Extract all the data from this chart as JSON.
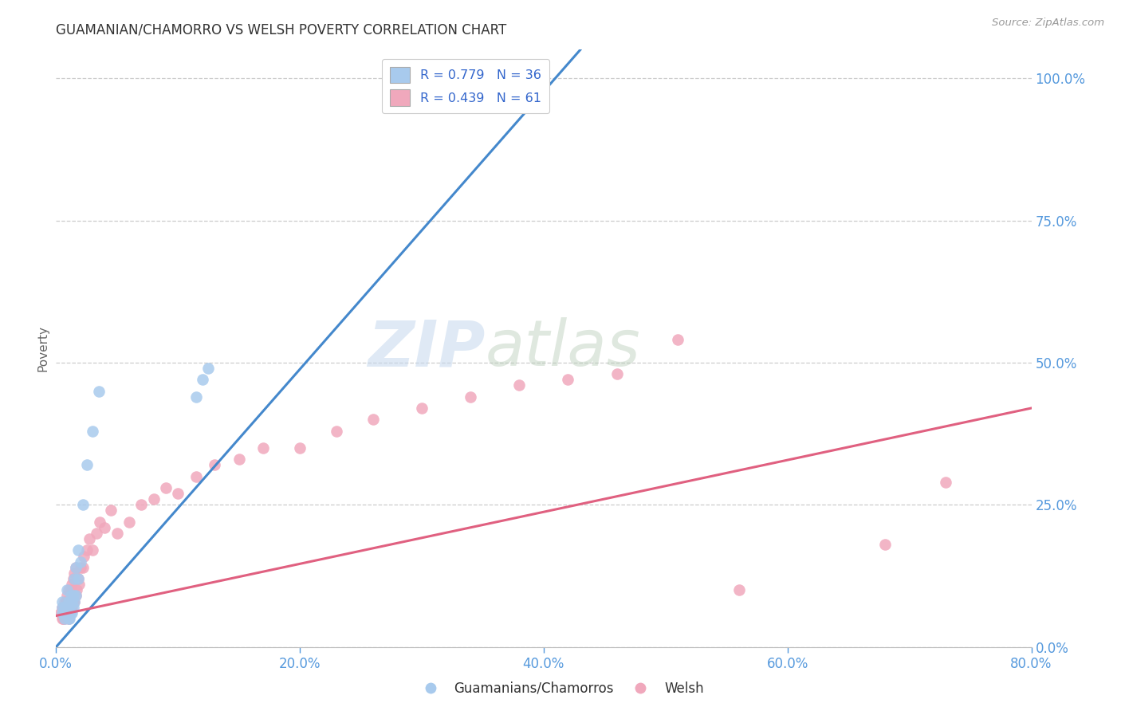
{
  "title": "GUAMANIAN/CHAMORRO VS WELSH POVERTY CORRELATION CHART",
  "source": "Source: ZipAtlas.com",
  "ylabel": "Poverty",
  "legend_labels": [
    "Guamanians/Chamorros",
    "Welsh"
  ],
  "blue_R": "0.779",
  "blue_N": "36",
  "pink_R": "0.439",
  "pink_N": "61",
  "blue_color": "#A8CAED",
  "pink_color": "#F0A8BC",
  "blue_line_color": "#4488CC",
  "pink_line_color": "#E06080",
  "grid_color": "#CCCCCC",
  "background_color": "#FFFFFF",
  "watermark_zip": "ZIP",
  "watermark_atlas": "atlas",
  "xlim": [
    0.0,
    0.8
  ],
  "ylim": [
    0.0,
    1.05
  ],
  "xtick_vals": [
    0.0,
    0.2,
    0.4,
    0.6,
    0.8
  ],
  "ytick_vals": [
    0.0,
    0.25,
    0.5,
    0.75,
    1.0
  ],
  "blue_line_x": [
    0.0,
    0.43
  ],
  "blue_line_y": [
    0.0,
    1.05
  ],
  "pink_line_x": [
    0.0,
    0.8
  ],
  "pink_line_y": [
    0.055,
    0.42
  ],
  "blue_scatter_x": [
    0.005,
    0.005,
    0.005,
    0.007,
    0.007,
    0.007,
    0.008,
    0.008,
    0.009,
    0.009,
    0.01,
    0.01,
    0.01,
    0.01,
    0.011,
    0.011,
    0.012,
    0.012,
    0.013,
    0.013,
    0.014,
    0.014,
    0.015,
    0.015,
    0.016,
    0.016,
    0.018,
    0.018,
    0.02,
    0.022,
    0.025,
    0.03,
    0.035,
    0.115,
    0.12,
    0.125
  ],
  "blue_scatter_y": [
    0.06,
    0.07,
    0.08,
    0.05,
    0.06,
    0.07,
    0.06,
    0.07,
    0.06,
    0.1,
    0.05,
    0.06,
    0.07,
    0.08,
    0.05,
    0.07,
    0.06,
    0.09,
    0.06,
    0.08,
    0.07,
    0.09,
    0.08,
    0.12,
    0.09,
    0.14,
    0.12,
    0.17,
    0.15,
    0.25,
    0.32,
    0.38,
    0.45,
    0.44,
    0.47,
    0.49
  ],
  "pink_scatter_x": [
    0.004,
    0.005,
    0.005,
    0.006,
    0.006,
    0.007,
    0.007,
    0.008,
    0.008,
    0.009,
    0.009,
    0.01,
    0.01,
    0.01,
    0.011,
    0.011,
    0.012,
    0.012,
    0.013,
    0.013,
    0.014,
    0.014,
    0.015,
    0.015,
    0.016,
    0.016,
    0.017,
    0.018,
    0.019,
    0.02,
    0.022,
    0.023,
    0.025,
    0.027,
    0.03,
    0.033,
    0.036,
    0.04,
    0.045,
    0.05,
    0.06,
    0.07,
    0.08,
    0.09,
    0.1,
    0.115,
    0.13,
    0.15,
    0.17,
    0.2,
    0.23,
    0.26,
    0.3,
    0.34,
    0.38,
    0.42,
    0.46,
    0.51,
    0.56,
    0.68,
    0.73
  ],
  "pink_scatter_y": [
    0.06,
    0.05,
    0.07,
    0.05,
    0.07,
    0.05,
    0.08,
    0.06,
    0.08,
    0.06,
    0.09,
    0.05,
    0.07,
    0.1,
    0.06,
    0.08,
    0.07,
    0.1,
    0.07,
    0.11,
    0.08,
    0.12,
    0.08,
    0.13,
    0.09,
    0.14,
    0.1,
    0.12,
    0.11,
    0.14,
    0.14,
    0.16,
    0.17,
    0.19,
    0.17,
    0.2,
    0.22,
    0.21,
    0.24,
    0.2,
    0.22,
    0.25,
    0.26,
    0.28,
    0.27,
    0.3,
    0.32,
    0.33,
    0.35,
    0.35,
    0.38,
    0.4,
    0.42,
    0.44,
    0.46,
    0.47,
    0.48,
    0.54,
    0.1,
    0.18,
    0.29
  ]
}
